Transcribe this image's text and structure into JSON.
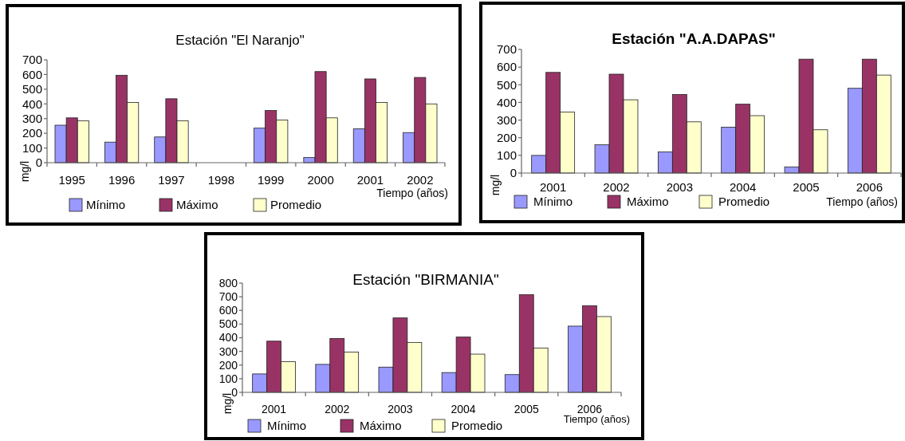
{
  "chart_data": [
    {
      "type": "bar",
      "title": "Estación \"El Naranjo\"",
      "categories": [
        "1995",
        "1996",
        "1997",
        "1998",
        "1999",
        "2000",
        "2001",
        "2002"
      ],
      "series": [
        {
          "name": "Mínimo",
          "color": "#9999ff",
          "values": [
            255,
            140,
            175,
            null,
            235,
            35,
            230,
            205
          ]
        },
        {
          "name": "Máximo",
          "color": "#993366",
          "values": [
            305,
            595,
            435,
            null,
            355,
            620,
            570,
            580
          ]
        },
        {
          "name": "Promedio",
          "color": "#ffffcc",
          "values": [
            285,
            410,
            285,
            null,
            290,
            305,
            410,
            400
          ]
        }
      ],
      "xlabel": "Tiempo (años)",
      "ylabel": "mg/l",
      "ylim": [
        0,
        700
      ],
      "yticks": [
        0,
        100,
        200,
        300,
        400,
        500,
        600,
        700
      ],
      "legend": "bottom"
    },
    {
      "type": "bar",
      "title": "Estación \"A.A.DAPAS\"",
      "categories": [
        "2001",
        "2002",
        "2003",
        "2004",
        "2005",
        "2006"
      ],
      "series": [
        {
          "name": "Mínimo",
          "color": "#9999ff",
          "values": [
            100,
            160,
            120,
            260,
            35,
            480
          ]
        },
        {
          "name": "Máximo",
          "color": "#993366",
          "values": [
            570,
            560,
            445,
            390,
            645,
            645
          ]
        },
        {
          "name": "Promedio",
          "color": "#ffffcc",
          "values": [
            345,
            415,
            290,
            325,
            245,
            555
          ]
        }
      ],
      "xlabel": "Tiempo (años)",
      "ylabel": "mg/l",
      "ylim": [
        0,
        700
      ],
      "yticks": [
        0,
        100,
        200,
        300,
        400,
        500,
        600,
        700
      ],
      "legend": "bottom"
    },
    {
      "type": "bar",
      "title": "Estación \"BIRMANIA\"",
      "categories": [
        "2001",
        "2002",
        "2003",
        "2004",
        "2005",
        "2006"
      ],
      "series": [
        {
          "name": "Mínimo",
          "color": "#9999ff",
          "values": [
            135,
            205,
            185,
            145,
            130,
            485
          ]
        },
        {
          "name": "Máximo",
          "color": "#993366",
          "values": [
            375,
            395,
            545,
            405,
            715,
            635
          ]
        },
        {
          "name": "Promedio",
          "color": "#ffffcc",
          "values": [
            225,
            295,
            365,
            280,
            325,
            555
          ]
        }
      ],
      "xlabel": "Tiempo (años)",
      "ylabel": "mg/l",
      "ylim": [
        0,
        800
      ],
      "yticks": [
        0,
        100,
        200,
        300,
        400,
        500,
        600,
        700,
        800
      ],
      "legend": "bottom"
    }
  ]
}
